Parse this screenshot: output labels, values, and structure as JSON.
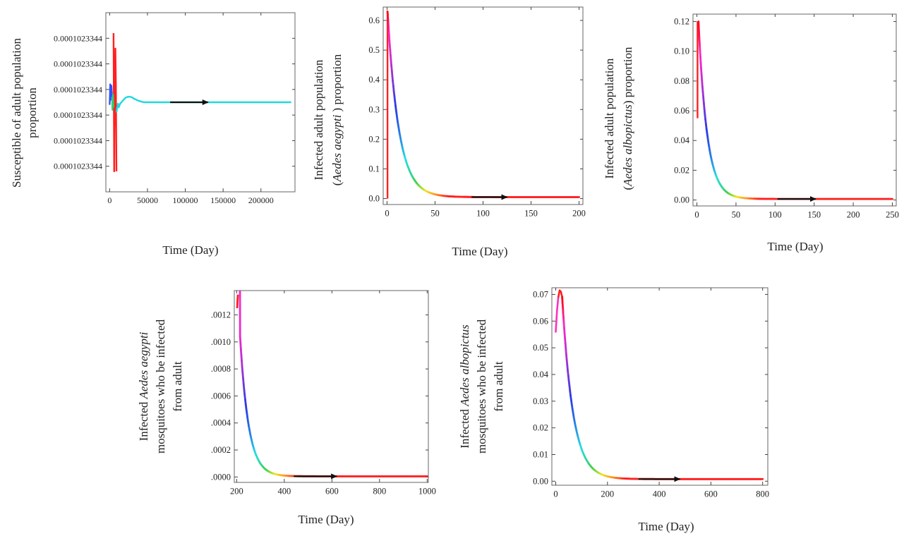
{
  "chart_data": [
    {
      "id": "p1",
      "type": "line",
      "title": "",
      "xlabel": "Time (Day)",
      "ylabel": [
        "Susceptible  of  adult  population",
        "proportion"
      ],
      "ylabel_italic": [],
      "xlim": [
        -5000,
        245000
      ],
      "ylim": [
        0,
        7
      ],
      "xticks": [
        0,
        50000,
        100000,
        150000,
        200000
      ],
      "xtick_labels": [
        "0",
        "50000",
        "100000",
        "150000",
        "200000"
      ],
      "yticks": [
        1,
        2,
        3,
        4,
        5,
        6
      ],
      "ytick_labels": [
        "0.0001023344",
        "0.0001023344",
        "0.0001023344",
        "0.0001023344",
        "0.0001023344",
        "0.0001023344"
      ],
      "grid": false,
      "arrow": {
        "from": [
          80000,
          3.5
        ],
        "to": [
          130000,
          3.5
        ]
      },
      "series": [
        {
          "color": "#ff2020",
          "x": [
            5200,
            5600,
            6000,
            6500,
            7000,
            7600,
            8200,
            9000
          ],
          "y": [
            6.2,
            3.2,
            0.8,
            4.0,
            2.6,
            5.6,
            4.2,
            0.8
          ]
        },
        {
          "color": "#3050ff",
          "x": [
            0,
            800,
            1600,
            2400,
            3200
          ],
          "y": [
            3.4,
            4.2,
            3.6,
            4.15,
            3.7
          ]
        },
        {
          "color": "#2fd070",
          "x": [
            3200,
            3800,
            4400,
            5000
          ],
          "y": [
            3.7,
            3.2,
            3.8,
            3.3
          ]
        },
        {
          "color": "#20d8e0",
          "x": [
            9000,
            10000,
            11000,
            12000,
            14000,
            17000,
            21000,
            25000,
            29000,
            33000,
            38000,
            45000,
            60000,
            100000,
            150000,
            200000,
            240000
          ],
          "y": [
            3.1,
            3.3,
            3.45,
            3.3,
            3.45,
            3.55,
            3.68,
            3.72,
            3.7,
            3.63,
            3.56,
            3.5,
            3.5,
            3.5,
            3.5,
            3.5,
            3.5
          ]
        }
      ]
    },
    {
      "id": "p2",
      "type": "line",
      "title": "",
      "xlabel": "Time  (Day)",
      "ylabel": [
        "Infected adult  population",
        "(Aedes aegypti ) proportion"
      ],
      "ylabel_italic": [
        "Aedes aegypti"
      ],
      "xlim": [
        -4,
        204
      ],
      "ylim": [
        -0.02,
        0.645
      ],
      "xticks": [
        0,
        50,
        100,
        150,
        200
      ],
      "xtick_labels": [
        "0",
        "50",
        "100",
        "150",
        "200"
      ],
      "yticks": [
        0,
        0.1,
        0.2,
        0.3,
        0.4,
        0.5,
        0.6
      ],
      "ytick_labels": [
        "0.0",
        "0.1",
        "0.2",
        "0.3",
        "0.4",
        "0.5",
        "0.6"
      ],
      "grid": false,
      "spike": {
        "x": 0.5,
        "y0": 0.0,
        "y1": 0.63
      },
      "decay": {
        "t0": 0.5,
        "x_end": 200,
        "y0": 0.63,
        "k": 0.085,
        "floor": 0.005
      },
      "arrow": {
        "from": [
          88,
          0.005
        ],
        "to": [
          125,
          0.005
        ]
      }
    },
    {
      "id": "p3",
      "type": "line",
      "title": "",
      "xlabel": "Time  (Day)",
      "ylabel": [
        "Infected adult  population",
        "(Aedes albopictus) proportion"
      ],
      "ylabel_italic": [
        "Aedes albopictus"
      ],
      "xlim": [
        -5,
        255
      ],
      "ylim": [
        -0.004,
        0.125
      ],
      "xticks": [
        0,
        50,
        100,
        150,
        200,
        250
      ],
      "xtick_labels": [
        "0",
        "50",
        "100",
        "150",
        "200",
        "250"
      ],
      "yticks": [
        0,
        0.02,
        0.04,
        0.06,
        0.08,
        0.1,
        0.12
      ],
      "ytick_labels": [
        "0.00",
        "0.02",
        "0.04",
        "0.06",
        "0.08",
        "0.10",
        "0.12"
      ],
      "grid": false,
      "spike": {
        "x": 0.8,
        "y0": 0.055,
        "y1": 0.12
      },
      "decay": {
        "t0": 2,
        "x_end": 250,
        "y0": 0.12,
        "k": 0.09,
        "floor": 0.0007
      },
      "arrow": {
        "from": [
          103,
          0.0007
        ],
        "to": [
          152,
          0.0007
        ]
      }
    },
    {
      "id": "p4",
      "type": "line",
      "title": "",
      "xlabel": "Time  (Day)",
      "ylabel": [
        "Infected  Aedes aegypti",
        "mosquitoes who be infected",
        "from adult"
      ],
      "ylabel_italic": [
        "Aedes aegypti"
      ],
      "xlim": [
        190,
        1005
      ],
      "ylim": [
        -4e-05,
        0.00138
      ],
      "xticks": [
        200,
        400,
        600,
        800,
        1000
      ],
      "xtick_labels": [
        "200",
        "400",
        "600",
        "800",
        "1000"
      ],
      "yticks": [
        0,
        0.0002,
        0.0004,
        0.0006,
        0.0008,
        0.001,
        0.0012
      ],
      "ytick_labels": [
        ".0000",
        ".0002",
        ".0004",
        ".0006",
        ".0008",
        ".0010",
        ".0012"
      ],
      "grid": false,
      "decay": {
        "t0": 205,
        "x_end": 1000,
        "y0": 0.00135,
        "k": 0.028,
        "floor": 5e-06,
        "rise_from": 0.00125
      },
      "arrow": {
        "from": [
          440,
          5e-06
        ],
        "to": [
          620,
          5e-06
        ]
      }
    },
    {
      "id": "p5",
      "type": "line",
      "title": "",
      "xlabel": "Time  (Day)",
      "ylabel": [
        "Infected  Aedes albopictus",
        "mosquitoes who be infected",
        "from adult"
      ],
      "ylabel_italic": [
        "Aedes albopictus"
      ],
      "xlim": [
        -15,
        820
      ],
      "ylim": [
        -0.0015,
        0.0725
      ],
      "xticks": [
        0,
        200,
        400,
        600,
        800
      ],
      "xtick_labels": [
        "0",
        "200",
        "400",
        "600",
        "800"
      ],
      "yticks": [
        0,
        0.01,
        0.02,
        0.03,
        0.04,
        0.05,
        0.06,
        0.07
      ],
      "ytick_labels": [
        "0.00",
        "0.01",
        "0.02",
        "0.03",
        "0.04",
        "0.05",
        "0.06",
        "0.07"
      ],
      "grid": false,
      "rise": {
        "x": [
          0,
          5,
          10,
          15,
          20,
          25
        ],
        "y": [
          0.056,
          0.064,
          0.069,
          0.0715,
          0.071,
          0.069
        ]
      },
      "decay": {
        "t0": 25,
        "x_end": 800,
        "y0": 0.069,
        "k": 0.024,
        "floor": 0.0008
      },
      "arrow": {
        "from": [
          320,
          0.0008
        ],
        "to": [
          480,
          0.0008
        ]
      }
    }
  ]
}
